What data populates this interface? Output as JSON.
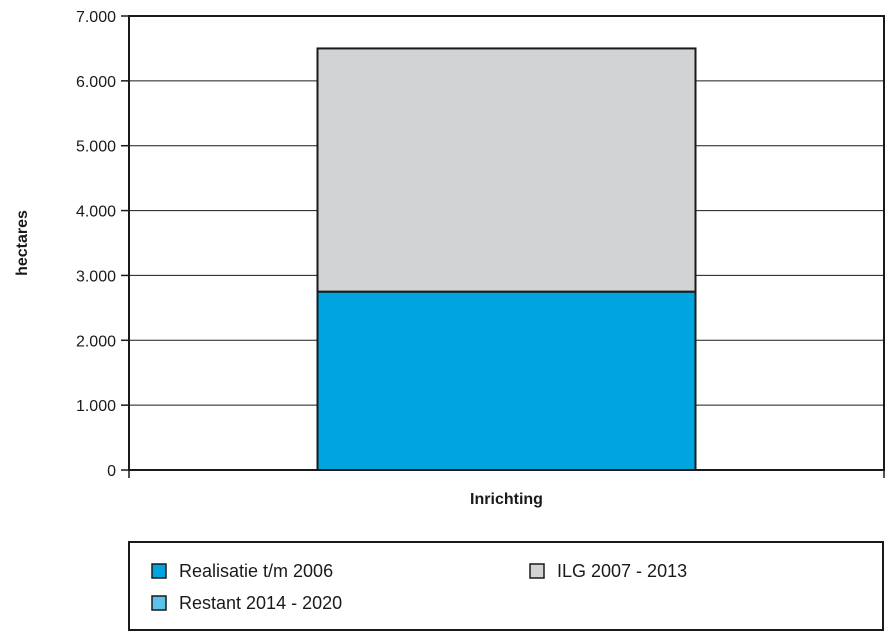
{
  "chart_data": {
    "type": "bar",
    "stacked": true,
    "categories": [
      "Inrichting"
    ],
    "series": [
      {
        "name": "Realisatie t/m 2006",
        "values": [
          2750
        ],
        "color": "#00a5e0"
      },
      {
        "name": "ILG 2007 - 2013",
        "values": [
          3750
        ],
        "color": "#d1d3d4"
      },
      {
        "name": "Restant 2014  - 2020",
        "values": [
          0
        ],
        "color": "#5bc2ec"
      }
    ],
    "xlabel": "Inrichting",
    "ylabel": "hectares",
    "ylim": [
      0,
      7000
    ],
    "yticks": [
      0,
      1000,
      2000,
      3000,
      4000,
      5000,
      6000,
      7000
    ],
    "ytick_labels": [
      "0",
      "1.000",
      "2.000",
      "3.000",
      "4.000",
      "5.000",
      "6.000",
      "7.000"
    ],
    "grid": true,
    "legend_position": "bottom",
    "legend_order": [
      0,
      1,
      2
    ]
  }
}
